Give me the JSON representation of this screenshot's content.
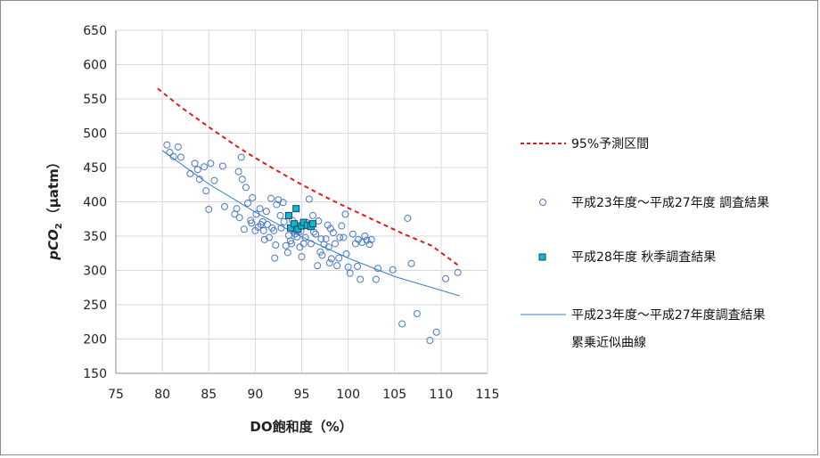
{
  "chart_data": {
    "type": "scatter",
    "xlabel": "DO飽和度（%）",
    "ylabel_main": "pCO",
    "ylabel_sub": "2",
    "ylabel_unit": "（μatm）",
    "xlim": [
      75,
      115
    ],
    "ylim": [
      150,
      650
    ],
    "xticks": [
      75,
      80,
      85,
      90,
      95,
      100,
      105,
      110,
      115
    ],
    "yticks": [
      150,
      200,
      250,
      300,
      350,
      400,
      450,
      500,
      550,
      600,
      650
    ],
    "grid": true,
    "legend_position": "right",
    "colors": {
      "prediction": "#e31a1c",
      "survey_h23_27": "#4a78c4",
      "survey_h28": "#00b4c8",
      "fit": "#2e7bc9"
    },
    "series": [
      {
        "name": "95%予測区間",
        "kind": "dashed-curve",
        "x": [
          79.5,
          82,
          85,
          88,
          90,
          92,
          95,
          98,
          100,
          103,
          106,
          109,
          112
        ],
        "y": [
          565,
          538,
          509,
          481,
          464,
          448,
          425,
          404,
          391,
          372,
          353,
          336,
          306
        ]
      },
      {
        "name": "平成23年度～平成27年度 調査結果",
        "kind": "open-circle",
        "x": [
          80.5,
          80.8,
          81.2,
          81.7,
          82.0,
          83.0,
          83.5,
          83.8,
          84.0,
          84.5,
          84.7,
          85.0,
          85.2,
          85.6,
          86.5,
          86.7,
          87.8,
          88.0,
          88.2,
          88.5,
          88.6,
          88.8,
          89.0,
          89.2,
          89.5,
          89.7,
          90.0,
          90.1,
          90.3,
          90.5,
          90.6,
          90.8,
          91.0,
          91.2,
          91.5,
          91.7,
          91.8,
          92.0,
          92.2,
          92.3,
          92.5,
          92.7,
          93.0,
          93.1,
          93.3,
          93.5,
          93.8,
          94.0,
          94.2,
          94.5,
          94.8,
          95.0,
          95.2,
          95.4,
          95.6,
          95.8,
          96.0,
          96.2,
          96.5,
          96.7,
          97.0,
          97.2,
          97.4,
          97.6,
          97.8,
          98.0,
          98.2,
          98.4,
          98.6,
          98.8,
          99.0,
          99.3,
          99.5,
          99.8,
          100.0,
          100.2,
          100.5,
          100.8,
          101.0,
          101.3,
          101.5,
          101.8,
          102.0,
          102.3,
          102.5,
          103.0,
          103.2,
          104.8,
          105.8,
          106.4,
          106.8,
          107.4,
          108.8,
          109.5,
          110.5,
          111.8,
          93.6,
          94.3,
          96.3,
          97.1,
          98.1,
          99.1,
          91.3,
          92.8,
          95.5,
          89.6,
          90.9,
          93.9,
          96.8,
          99.7,
          101.1,
          88.3,
          92.1,
          94.9,
          97.9
        ],
        "y": [
          483,
          472,
          466,
          480,
          465,
          441,
          456,
          447,
          433,
          451,
          416,
          389,
          456,
          431,
          452,
          393,
          382,
          390,
          444,
          465,
          433,
          360,
          421,
          398,
          373,
          406,
          358,
          382,
          363,
          390,
          367,
          371,
          345,
          386,
          348,
          405,
          362,
          358,
          337,
          396,
          403,
          380,
          399,
          371,
          336,
          326,
          343,
          373,
          357,
          349,
          334,
          320,
          339,
          348,
          365,
          404,
          339,
          380,
          353,
          307,
          327,
          322,
          338,
          346,
          366,
          311,
          317,
          355,
          339,
          307,
          318,
          365,
          348,
          324,
          305,
          296,
          353,
          339,
          306,
          287,
          341,
          350,
          344,
          338,
          345,
          287,
          303,
          301,
          222,
          376,
          310,
          237,
          198,
          210,
          288,
          297,
          351,
          353,
          356,
          346,
          361,
          348,
          367,
          362,
          370,
          369,
          358,
          339,
          372,
          382,
          345,
          377,
          318,
          357,
          334
        ]
      },
      {
        "name": "平成28年度 秋季調査結果",
        "kind": "filled-square",
        "x": [
          93.6,
          93.8,
          94.2,
          94.4,
          94.6,
          95.0,
          95.2,
          95.6,
          96.0,
          96.2
        ],
        "y": [
          380,
          362,
          368,
          390,
          360,
          365,
          370,
          366,
          364,
          368
        ]
      },
      {
        "name": "平成23年度～平成27年度調査結果\n累乗近似曲線",
        "kind": "fit-line",
        "x": [
          80,
          85,
          90,
          95,
          100,
          105,
          112
        ],
        "y": [
          475,
          426,
          385,
          349,
          318,
          291,
          263
        ]
      }
    ],
    "legend": [
      {
        "label": "95%予測区間"
      },
      {
        "label": "平成23年度～平成27年度 調査結果"
      },
      {
        "label": "平成28年度 秋季調査結果"
      },
      {
        "label": "平成23年度～平成27年度調査結果"
      },
      {
        "label": "累乗近似曲線"
      }
    ]
  }
}
